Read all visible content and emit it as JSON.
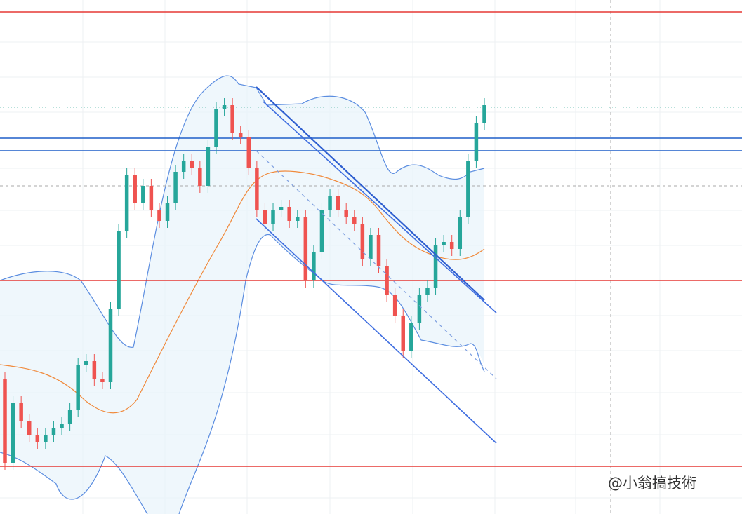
{
  "chart_data": {
    "type": "candlestick",
    "watermark": "@小翁搞技術",
    "ylim": [
      0,
      733
    ],
    "up_color": "#26a69a",
    "down_color": "#ef5350",
    "open": [
      193,
      73,
      158,
      133,
      113,
      103,
      113,
      123,
      128,
      148,
      213,
      218,
      193,
      188,
      293,
      403,
      483,
      443,
      468,
      433,
      418,
      443,
      488,
      503,
      493,
      468,
      523,
      578,
      583,
      543,
      538,
      493,
      433,
      413,
      433,
      438,
      418,
      423,
      333,
      373,
      433,
      453,
      433,
      423,
      413,
      363,
      398,
      353,
      313,
      283,
      233,
      273,
      313,
      323,
      383,
      388,
      378,
      423,
      503,
      558
    ],
    "high": [
      203,
      168,
      168,
      143,
      123,
      123,
      133,
      138,
      158,
      223,
      228,
      228,
      203,
      303,
      413,
      493,
      493,
      478,
      478,
      443,
      453,
      498,
      513,
      513,
      503,
      533,
      588,
      593,
      593,
      553,
      548,
      503,
      443,
      443,
      448,
      448,
      433,
      433,
      383,
      443,
      463,
      463,
      443,
      433,
      423,
      408,
      408,
      363,
      323,
      293,
      283,
      323,
      333,
      393,
      398,
      398,
      433,
      513,
      568,
      593
    ],
    "low": [
      63,
      63,
      123,
      103,
      93,
      93,
      103,
      113,
      118,
      138,
      203,
      183,
      178,
      178,
      283,
      393,
      433,
      433,
      423,
      408,
      408,
      433,
      478,
      483,
      458,
      458,
      513,
      568,
      533,
      528,
      483,
      423,
      403,
      403,
      423,
      408,
      408,
      323,
      323,
      363,
      423,
      423,
      413,
      403,
      353,
      353,
      343,
      303,
      273,
      223,
      223,
      263,
      303,
      313,
      373,
      368,
      368,
      413,
      493,
      548
    ],
    "close": [
      73,
      158,
      133,
      113,
      103,
      113,
      123,
      128,
      148,
      213,
      218,
      193,
      188,
      293,
      403,
      483,
      443,
      468,
      433,
      418,
      443,
      488,
      503,
      493,
      468,
      523,
      578,
      583,
      543,
      538,
      493,
      433,
      413,
      433,
      438,
      418,
      423,
      333,
      373,
      433,
      453,
      433,
      423,
      413,
      363,
      398,
      353,
      313,
      283,
      233,
      273,
      313,
      323,
      383,
      388,
      378,
      423,
      503,
      558,
      583
    ],
    "levels": [
      {
        "value": 716,
        "color": "#e53935"
      },
      {
        "value": 536,
        "color": "#1e5fc8"
      },
      {
        "value": 518,
        "color": "#1e5fc8"
      },
      {
        "value": 333,
        "color": "#e53935"
      },
      {
        "value": 68,
        "color": "#e53935"
      }
    ]
  }
}
